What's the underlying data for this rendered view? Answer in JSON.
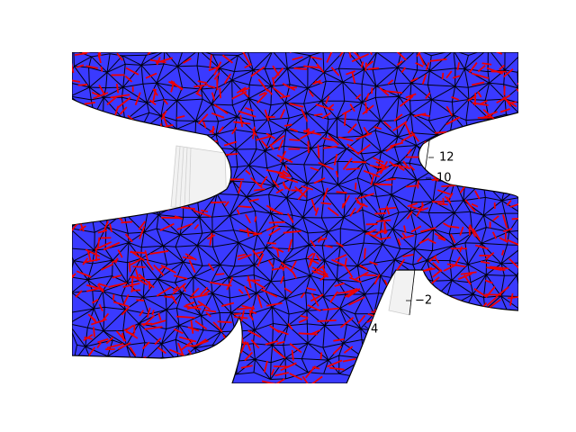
{
  "axis_tick_labels": [
    "12",
    "10",
    "−2",
    "4"
  ]
}
